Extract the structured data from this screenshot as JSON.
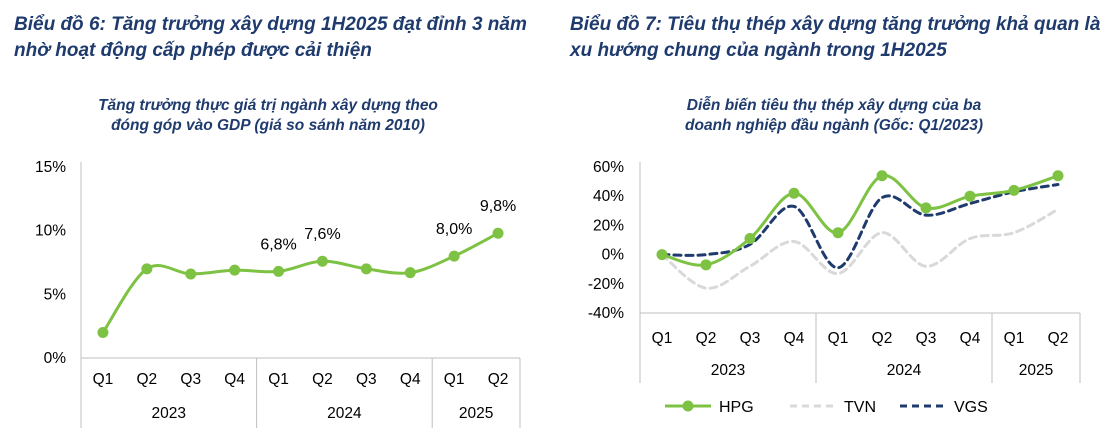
{
  "headings": {
    "left": "Biểu đồ 6: Tăng trưởng xây dựng 1H2025 đạt đỉnh 3 năm nhờ hoạt động cấp phép được cải thiện",
    "right": "Biểu đồ 7: Tiêu thụ thép xây dựng tăng trưởng khả quan là xu hướng chung của ngành trong 1H2025"
  },
  "chart_data": [
    {
      "type": "line",
      "title_lines": [
        "Tăng trưởng thực giá trị ngành xây dựng theo",
        "đóng góp vào GDP (giá so sánh năm 2010)"
      ],
      "categories": [
        "Q1",
        "Q2",
        "Q3",
        "Q4",
        "Q1",
        "Q2",
        "Q3",
        "Q4",
        "Q1",
        "Q2"
      ],
      "groups": [
        {
          "label": "2023",
          "count": 4
        },
        {
          "label": "2024",
          "count": 4
        },
        {
          "label": "2025",
          "count": 2
        }
      ],
      "series": [
        {
          "values": [
            2.0,
            7.0,
            6.6,
            6.9,
            6.8,
            7.6,
            7.0,
            6.7,
            8.0,
            9.8
          ],
          "color": "#7dc242"
        }
      ],
      "data_labels": [
        {
          "index": 4,
          "text": "6,8%"
        },
        {
          "index": 5,
          "text": "7,6%"
        },
        {
          "index": 8,
          "text": "8,0%"
        },
        {
          "index": 9,
          "text": "9,8%"
        }
      ],
      "yticks": [
        "0%",
        "5%",
        "10%",
        "15%"
      ],
      "ytick_values": [
        0,
        5,
        10,
        15
      ],
      "ylim": [
        0,
        15
      ],
      "grid": false
    },
    {
      "type": "line",
      "title_lines": [
        "Diễn biến tiêu thụ thép xây dựng của ba",
        "doanh nghiệp đầu ngành (Gốc: Q1/2023)"
      ],
      "categories": [
        "Q1",
        "Q2",
        "Q3",
        "Q4",
        "Q1",
        "Q2",
        "Q3",
        "Q4",
        "Q1",
        "Q2"
      ],
      "groups": [
        {
          "label": "2023",
          "count": 4
        },
        {
          "label": "2024",
          "count": 4
        },
        {
          "label": "2025",
          "count": 2
        }
      ],
      "series": [
        {
          "name": "HPG",
          "values": [
            0,
            -7,
            11,
            42,
            15,
            54,
            32,
            40,
            44,
            54
          ],
          "color": "#7dc242",
          "style": "solid-markers"
        },
        {
          "name": "TVN",
          "values": [
            0,
            -23,
            -8,
            9,
            -13,
            15,
            -8,
            11,
            15,
            31
          ],
          "color": "#d9d9d9",
          "style": "dashed"
        },
        {
          "name": "VGS",
          "values": [
            0,
            0,
            7,
            33,
            -9,
            39,
            27,
            35,
            43,
            48
          ],
          "color": "#1f3b6e",
          "style": "dashed"
        }
      ],
      "yticks": [
        "-40%",
        "-20%",
        "0%",
        "20%",
        "40%",
        "60%"
      ],
      "ytick_values": [
        -40,
        -20,
        0,
        20,
        40,
        60
      ],
      "ylim": [
        -40,
        60
      ],
      "grid": false,
      "legend_position": "bottom"
    }
  ]
}
